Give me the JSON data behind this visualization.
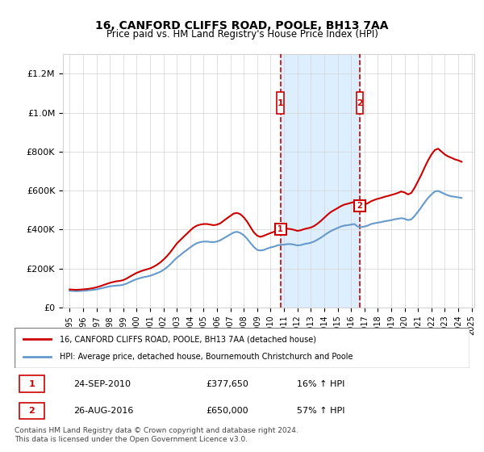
{
  "title": "16, CANFORD CLIFFS ROAD, POOLE, BH13 7AA",
  "subtitle": "Price paid vs. HM Land Registry's House Price Index (HPI)",
  "legend_line1": "16, CANFORD CLIFFS ROAD, POOLE, BH13 7AA (detached house)",
  "legend_line2": "HPI: Average price, detached house, Bournemouth Christchurch and Poole",
  "transaction1_label": "1",
  "transaction1_date": "24-SEP-2010",
  "transaction1_price": "£377,650",
  "transaction1_hpi": "16% ↑ HPI",
  "transaction2_label": "2",
  "transaction2_date": "26-AUG-2016",
  "transaction2_price": "£650,000",
  "transaction2_hpi": "57% ↑ HPI",
  "footer": "Contains HM Land Registry data © Crown copyright and database right 2024.\nThis data is licensed under the Open Government Licence v3.0.",
  "red_line_color": "#cc0000",
  "blue_line_color": "#6699cc",
  "shaded_region_color": "#ddeeff",
  "dashed_line_color": "#cc0000",
  "transaction1_x": 2010.73,
  "transaction2_x": 2016.65,
  "ylim_max": 1300000,
  "hpi_data": {
    "years": [
      1995.0,
      1995.25,
      1995.5,
      1995.75,
      1996.0,
      1996.25,
      1996.5,
      1996.75,
      1997.0,
      1997.25,
      1997.5,
      1997.75,
      1998.0,
      1998.25,
      1998.5,
      1998.75,
      1999.0,
      1999.25,
      1999.5,
      1999.75,
      2000.0,
      2000.25,
      2000.5,
      2000.75,
      2001.0,
      2001.25,
      2001.5,
      2001.75,
      2002.0,
      2002.25,
      2002.5,
      2002.75,
      2003.0,
      2003.25,
      2003.5,
      2003.75,
      2004.0,
      2004.25,
      2004.5,
      2004.75,
      2005.0,
      2005.25,
      2005.5,
      2005.75,
      2006.0,
      2006.25,
      2006.5,
      2006.75,
      2007.0,
      2007.25,
      2007.5,
      2007.75,
      2008.0,
      2008.25,
      2008.5,
      2008.75,
      2009.0,
      2009.25,
      2009.5,
      2009.75,
      2010.0,
      2010.25,
      2010.5,
      2010.75,
      2011.0,
      2011.25,
      2011.5,
      2011.75,
      2012.0,
      2012.25,
      2012.5,
      2012.75,
      2013.0,
      2013.25,
      2013.5,
      2013.75,
      2014.0,
      2014.25,
      2014.5,
      2014.75,
      2015.0,
      2015.25,
      2015.5,
      2015.75,
      2016.0,
      2016.25,
      2016.5,
      2016.75,
      2017.0,
      2017.25,
      2017.5,
      2017.75,
      2018.0,
      2018.25,
      2018.5,
      2018.75,
      2019.0,
      2019.25,
      2019.5,
      2019.75,
      2020.0,
      2020.25,
      2020.5,
      2020.75,
      2021.0,
      2021.25,
      2021.5,
      2021.75,
      2022.0,
      2022.25,
      2022.5,
      2022.75,
      2023.0,
      2023.25,
      2023.5,
      2023.75,
      2024.0,
      2024.25
    ],
    "values": [
      85000,
      84000,
      83000,
      84000,
      85000,
      86000,
      88000,
      90000,
      92000,
      96000,
      100000,
      104000,
      108000,
      110000,
      112000,
      113000,
      116000,
      122000,
      130000,
      138000,
      145000,
      150000,
      155000,
      158000,
      162000,
      168000,
      175000,
      182000,
      192000,
      205000,
      220000,
      238000,
      255000,
      268000,
      282000,
      295000,
      308000,
      320000,
      330000,
      335000,
      338000,
      338000,
      336000,
      335000,
      338000,
      345000,
      355000,
      365000,
      375000,
      385000,
      388000,
      382000,
      370000,
      352000,
      330000,
      310000,
      295000,
      292000,
      295000,
      302000,
      308000,
      312000,
      318000,
      322000,
      322000,
      325000,
      325000,
      322000,
      318000,
      320000,
      325000,
      328000,
      332000,
      338000,
      348000,
      358000,
      370000,
      382000,
      392000,
      400000,
      408000,
      415000,
      420000,
      422000,
      425000,
      428000,
      415000,
      412000,
      415000,
      420000,
      428000,
      432000,
      435000,
      438000,
      442000,
      445000,
      448000,
      452000,
      455000,
      458000,
      455000,
      448000,
      452000,
      470000,
      492000,
      515000,
      540000,
      562000,
      580000,
      595000,
      598000,
      590000,
      582000,
      575000,
      570000,
      568000,
      565000,
      562000
    ]
  },
  "red_line_data": {
    "years": [
      1995.0,
      1995.25,
      1995.5,
      1995.75,
      1996.0,
      1996.25,
      1996.5,
      1996.75,
      1997.0,
      1997.25,
      1997.5,
      1997.75,
      1998.0,
      1998.25,
      1998.5,
      1998.75,
      1999.0,
      1999.25,
      1999.5,
      1999.75,
      2000.0,
      2000.25,
      2000.5,
      2000.75,
      2001.0,
      2001.25,
      2001.5,
      2001.75,
      2002.0,
      2002.25,
      2002.5,
      2002.75,
      2003.0,
      2003.25,
      2003.5,
      2003.75,
      2004.0,
      2004.25,
      2004.5,
      2004.75,
      2005.0,
      2005.25,
      2005.5,
      2005.75,
      2006.0,
      2006.25,
      2006.5,
      2006.75,
      2007.0,
      2007.25,
      2007.5,
      2007.75,
      2008.0,
      2008.25,
      2008.5,
      2008.75,
      2009.0,
      2009.25,
      2009.5,
      2009.75,
      2010.0,
      2010.25,
      2010.5,
      2010.75,
      2011.0,
      2011.25,
      2011.5,
      2011.75,
      2012.0,
      2012.25,
      2012.5,
      2012.75,
      2013.0,
      2013.25,
      2013.5,
      2013.75,
      2014.0,
      2014.25,
      2014.5,
      2014.75,
      2015.0,
      2015.25,
      2015.5,
      2015.75,
      2016.0,
      2016.25,
      2016.5,
      2016.75,
      2017.0,
      2017.25,
      2017.5,
      2017.75,
      2018.0,
      2018.25,
      2018.5,
      2018.75,
      2019.0,
      2019.25,
      2019.5,
      2019.75,
      2020.0,
      2020.25,
      2020.5,
      2020.75,
      2021.0,
      2021.25,
      2021.5,
      2021.75,
      2022.0,
      2022.25,
      2022.5,
      2022.75,
      2023.0,
      2023.25,
      2023.5,
      2023.75,
      2024.0,
      2024.25
    ],
    "values": [
      92000,
      91000,
      90000,
      91000,
      92500,
      94000,
      96000,
      99000,
      103000,
      108000,
      114000,
      120000,
      126000,
      130000,
      134000,
      136000,
      140000,
      148000,
      158000,
      168000,
      177000,
      184000,
      190000,
      195000,
      200000,
      208000,
      218000,
      230000,
      245000,
      262000,
      282000,
      305000,
      328000,
      345000,
      362000,
      378000,
      395000,
      410000,
      420000,
      425000,
      428000,
      428000,
      425000,
      422000,
      425000,
      432000,
      445000,
      458000,
      470000,
      482000,
      485000,
      478000,
      462000,
      440000,
      412000,
      385000,
      368000,
      362000,
      368000,
      375000,
      382000,
      388000,
      395000,
      400000,
      400000,
      404000,
      402000,
      398000,
      393000,
      396000,
      402000,
      406000,
      410000,
      418000,
      430000,
      444000,
      460000,
      476000,
      490000,
      500000,
      510000,
      520000,
      528000,
      532000,
      537000,
      542000,
      528000,
      522000,
      528000,
      535000,
      545000,
      552000,
      558000,
      562000,
      568000,
      572000,
      577000,
      582000,
      588000,
      595000,
      590000,
      580000,
      588000,
      615000,
      648000,
      682000,
      720000,
      755000,
      785000,
      808000,
      815000,
      800000,
      785000,
      775000,
      768000,
      760000,
      755000,
      748000
    ]
  }
}
